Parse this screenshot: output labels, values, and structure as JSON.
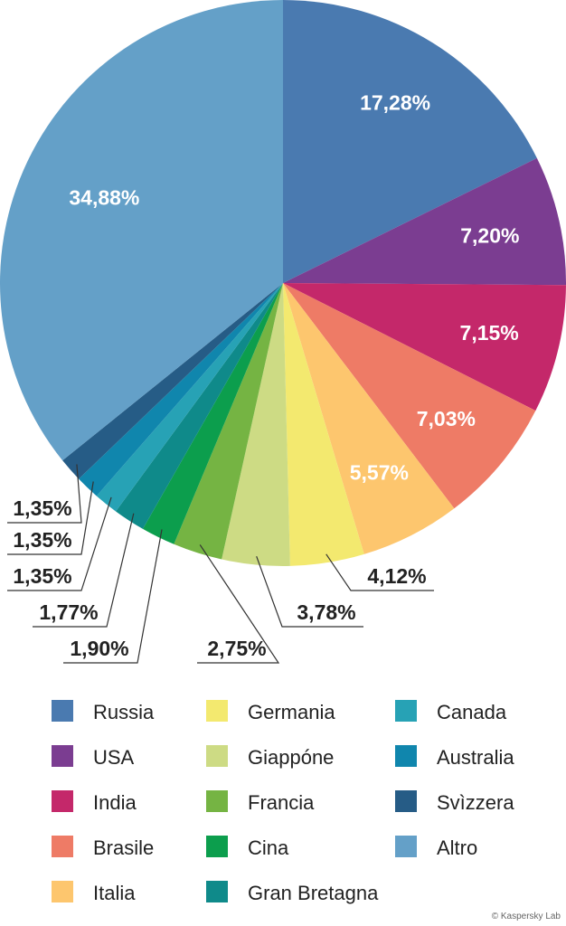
{
  "chart_data": {
    "type": "pie",
    "categories": [
      "Russia",
      "USA",
      "India",
      "Brasile",
      "Italia",
      "Germania",
      "Giappóne",
      "Francia",
      "Cina",
      "Gran Bretagna",
      "Canada",
      "Australia",
      "Svìzzera",
      "Altro"
    ],
    "values": [
      17.28,
      7.2,
      7.15,
      7.03,
      5.57,
      4.12,
      3.78,
      2.75,
      1.9,
      1.77,
      1.35,
      1.35,
      1.35,
      34.88
    ],
    "value_labels": [
      "17,28%",
      "7,20%",
      "7,15%",
      "7,03%",
      "5,57%",
      "4,12%",
      "3,78%",
      "2,75%",
      "1,90%",
      "1,77%",
      "1,35%",
      "1,35%",
      "1,35%",
      "34,88%"
    ],
    "colors": [
      "#4a7ab0",
      "#7b3d91",
      "#c4286a",
      "#ee7b66",
      "#fdc66e",
      "#f3e96f",
      "#cddb84",
      "#75b443",
      "#0c9e4d",
      "#0f8a8a",
      "#27a2b5",
      "#1086ad",
      "#265c86",
      "#64a0c8"
    ],
    "credit": "© Kaspersky Lab"
  }
}
